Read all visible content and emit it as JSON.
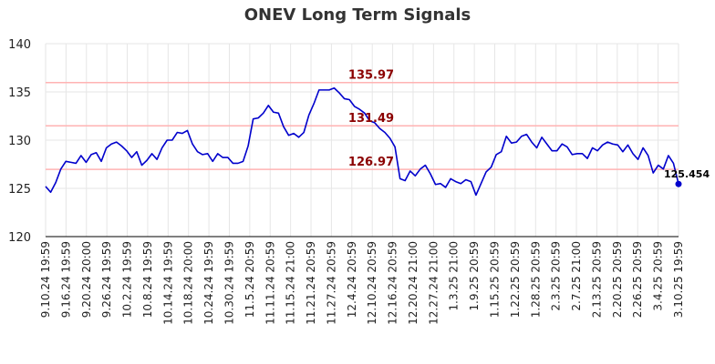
{
  "chart_data": {
    "type": "line",
    "title": "ONEV Long Term Signals",
    "xlabel": "",
    "ylabel": "",
    "ylim": [
      120,
      140
    ],
    "yticks": [
      120,
      125,
      130,
      135,
      140
    ],
    "grid": true,
    "line_color": "#0000cc",
    "hline_color": "#ffb3b3",
    "hline_label_color": "#8b0000",
    "x_tick_labels": [
      "9.10.24 19:59",
      "9.16.24 19:59",
      "9.20.24 20:00",
      "9.26.24 19:59",
      "10.2.24 19:59",
      "10.8.24 19:59",
      "10.14.24 19:59",
      "10.18.24 20:00",
      "10.24.24 19:59",
      "10.30.24 19:59",
      "11.5.24 20:59",
      "11.11.24 20:59",
      "11.15.24 21:00",
      "11.21.24 20:59",
      "11.27.24 20:59",
      "12.4.24 20:59",
      "12.10.24 20:59",
      "12.16.24 20:59",
      "12.20.24 21:00",
      "12.27.24 21:00",
      "1.3.25 21:00",
      "1.9.25 20:59",
      "1.15.25 20:59",
      "1.22.25 20:59",
      "1.28.25 20:59",
      "2.3.25 20:59",
      "2.7.25 21:00",
      "2.13.25 20:59",
      "2.20.25 20:59",
      "2.26.25 20:59",
      "3.4.25 20:59",
      "3.10.25 19:59"
    ],
    "horizontal_lines": [
      {
        "value": 135.97,
        "label": "135.97"
      },
      {
        "value": 131.49,
        "label": "131.49"
      },
      {
        "value": 126.97,
        "label": "126.97"
      }
    ],
    "last_point": {
      "value": 125.454,
      "label": "125.454"
    },
    "series": [
      {
        "values": [
          125.2,
          124.6,
          125.6,
          127.0,
          127.8,
          127.7,
          127.6,
          128.4,
          127.7,
          128.5,
          128.7,
          127.8,
          129.2,
          129.6,
          129.8,
          129.4,
          128.9,
          128.2,
          128.8,
          127.4,
          127.9,
          128.6,
          128.0,
          129.2,
          130.0,
          130.0,
          130.8,
          130.7,
          131.0,
          129.6,
          128.8,
          128.5,
          128.6,
          127.8,
          128.6,
          128.2,
          128.2,
          127.6,
          127.6,
          127.8,
          129.4,
          132.2,
          132.3,
          132.8,
          133.6,
          132.9,
          132.8,
          131.4,
          130.5,
          130.7,
          130.3,
          130.8,
          132.6,
          133.8,
          135.2,
          135.2,
          135.2,
          135.4,
          134.9,
          134.3,
          134.2,
          133.5,
          133.2,
          132.8,
          132.0,
          131.8,
          131.2,
          130.8,
          130.2,
          129.3,
          126.0,
          125.8,
          126.8,
          126.3,
          127.0,
          127.4,
          126.5,
          125.4,
          125.5,
          125.1,
          126.0,
          125.7,
          125.5,
          125.9,
          125.7,
          124.3,
          125.5,
          126.7,
          127.2,
          128.5,
          128.8,
          130.4,
          129.7,
          129.8,
          130.4,
          130.6,
          129.8,
          129.2,
          130.3,
          129.6,
          128.9,
          128.9,
          129.6,
          129.3,
          128.5,
          128.6,
          128.6,
          128.1,
          129.2,
          128.9,
          129.5,
          129.8,
          129.6,
          129.5,
          128.8,
          129.5,
          128.6,
          128.0,
          129.2,
          128.4,
          126.6,
          127.4,
          127.0,
          128.4,
          127.6,
          125.454
        ]
      }
    ]
  }
}
